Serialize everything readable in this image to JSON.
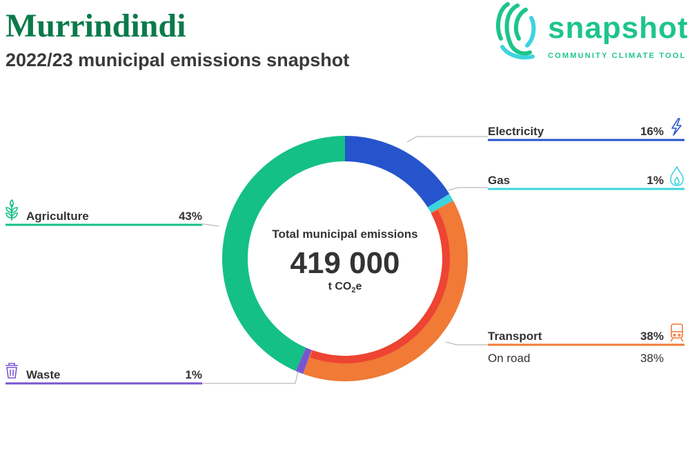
{
  "header": {
    "title": "Murrindindi",
    "subtitle": "2022/23 municipal emissions snapshot"
  },
  "logo": {
    "word": "snapshot",
    "tagline": "COMMUNITY CLIMATE TOOL",
    "color": "#1dc58a"
  },
  "center": {
    "caption": "Total municipal emissions",
    "value": "419 000",
    "unit_prefix": "t CO",
    "unit_sub": "2",
    "unit_suffix": "e"
  },
  "chart_data": {
    "type": "pie",
    "total": 419000,
    "unit": "t CO2e",
    "categories": [
      {
        "name": "Electricity",
        "label": "16%",
        "value": 16,
        "color": "#2654cc",
        "icon": "lightning-icon"
      },
      {
        "name": "Gas",
        "label": "1%",
        "value": 1,
        "color": "#3dd4de",
        "icon": "flame-icon"
      },
      {
        "name": "Transport",
        "label": "38%",
        "value": 38,
        "color": "#f07a36",
        "icon": "train-icon",
        "subcategories": [
          {
            "name": "On road",
            "label": "38%",
            "value": 38,
            "color": "#ee4433"
          }
        ]
      },
      {
        "name": "Waste",
        "label": "1%",
        "value": 1,
        "color": "#7a55d0",
        "icon": "bin-icon"
      },
      {
        "name": "Agriculture",
        "label": "43%",
        "value": 43,
        "color": "#14c085",
        "icon": "plant-icon"
      }
    ]
  }
}
